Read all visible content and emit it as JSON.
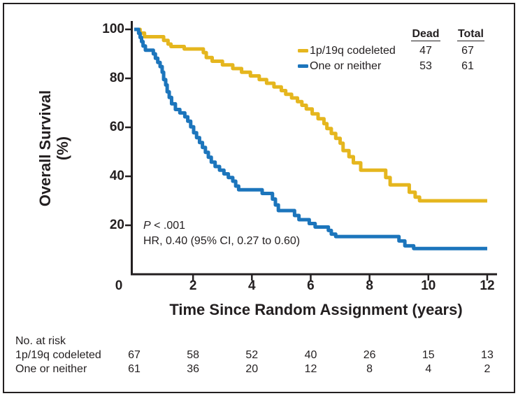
{
  "chart_data": {
    "type": "line",
    "subtype": "kaplan-meier-step",
    "xlabel": "Time Since Random Assignment (years)",
    "ylabel_line1": "Overall Survival",
    "ylabel_line2": "(%)",
    "xlim": [
      0,
      12
    ],
    "ylim": [
      0,
      100
    ],
    "xticks": [
      0,
      2,
      4,
      6,
      8,
      10,
      12
    ],
    "yticks": [
      100,
      80,
      60,
      40,
      20
    ],
    "grid": false,
    "axis_color": "#231F20",
    "legend_position": "upper-right-inside",
    "legend_headers": {
      "dead": "Dead",
      "total": "Total"
    },
    "series": [
      {
        "name": "1p/19q codeleted",
        "color": "#E5B61E",
        "dead": 47,
        "total": 67,
        "points": [
          [
            0,
            100
          ],
          [
            0.2,
            98.5
          ],
          [
            0.35,
            97
          ],
          [
            1.0,
            95.5
          ],
          [
            1.15,
            94
          ],
          [
            1.25,
            93
          ],
          [
            1.7,
            92
          ],
          [
            2.35,
            90.5
          ],
          [
            2.45,
            88.5
          ],
          [
            2.65,
            87
          ],
          [
            3.0,
            85.5
          ],
          [
            3.35,
            84
          ],
          [
            3.65,
            82.5
          ],
          [
            3.95,
            81
          ],
          [
            4.25,
            79.5
          ],
          [
            4.5,
            78
          ],
          [
            4.75,
            76.5
          ],
          [
            5.0,
            75
          ],
          [
            5.15,
            73.5
          ],
          [
            5.35,
            72
          ],
          [
            5.55,
            70.5
          ],
          [
            5.7,
            69
          ],
          [
            5.85,
            67.5
          ],
          [
            6.05,
            65.5
          ],
          [
            6.25,
            63.5
          ],
          [
            6.45,
            61.5
          ],
          [
            6.55,
            59.5
          ],
          [
            6.7,
            57.5
          ],
          [
            6.85,
            55.5
          ],
          [
            7.0,
            53.5
          ],
          [
            7.1,
            50.5
          ],
          [
            7.3,
            48
          ],
          [
            7.45,
            45.5
          ],
          [
            7.7,
            42.5
          ],
          [
            8.55,
            39.5
          ],
          [
            8.7,
            36.5
          ],
          [
            9.35,
            33.5
          ],
          [
            9.55,
            31.5
          ],
          [
            9.7,
            30
          ],
          [
            12,
            30
          ]
        ]
      },
      {
        "name": "One or neither",
        "color": "#1C75BC",
        "dead": 53,
        "total": 61,
        "points": [
          [
            0,
            100
          ],
          [
            0.15,
            98.4
          ],
          [
            0.2,
            96.7
          ],
          [
            0.25,
            95
          ],
          [
            0.3,
            93.2
          ],
          [
            0.38,
            91.5
          ],
          [
            0.65,
            90
          ],
          [
            0.72,
            88.2
          ],
          [
            0.8,
            86.5
          ],
          [
            0.88,
            84.8
          ],
          [
            0.95,
            82.5
          ],
          [
            1.0,
            79.5
          ],
          [
            1.07,
            77.3
          ],
          [
            1.12,
            74.5
          ],
          [
            1.19,
            72.2
          ],
          [
            1.27,
            69.6
          ],
          [
            1.4,
            67.3
          ],
          [
            1.55,
            65.9
          ],
          [
            1.72,
            64.3
          ],
          [
            1.82,
            62.5
          ],
          [
            1.92,
            60.2
          ],
          [
            2.02,
            57.8
          ],
          [
            2.12,
            55.8
          ],
          [
            2.22,
            53.8
          ],
          [
            2.32,
            51.8
          ],
          [
            2.42,
            49.8
          ],
          [
            2.52,
            47.8
          ],
          [
            2.62,
            45.8
          ],
          [
            2.75,
            44
          ],
          [
            2.9,
            42.5
          ],
          [
            3.05,
            41
          ],
          [
            3.2,
            39.5
          ],
          [
            3.35,
            38
          ],
          [
            3.45,
            36
          ],
          [
            3.55,
            34.5
          ],
          [
            4.35,
            33
          ],
          [
            4.7,
            30.7
          ],
          [
            4.8,
            28.3
          ],
          [
            4.9,
            26
          ],
          [
            5.45,
            24
          ],
          [
            5.6,
            22.3
          ],
          [
            5.95,
            20.7
          ],
          [
            6.15,
            19.3
          ],
          [
            6.6,
            17.9
          ],
          [
            6.7,
            16.4
          ],
          [
            6.85,
            15.4
          ],
          [
            9.0,
            13.6
          ],
          [
            9.2,
            11.6
          ],
          [
            9.5,
            10.5
          ],
          [
            12,
            10.5
          ]
        ]
      }
    ],
    "annotation": {
      "p_italic": "P",
      "p_rest": " < .001",
      "hr_text": "HR, 0.40 (95% CI, 0.27 to 0.60)"
    }
  },
  "at_risk": {
    "title": "No. at risk",
    "rows": [
      {
        "label": "1p/19q codeleted",
        "values": [
          67,
          58,
          52,
          40,
          26,
          15,
          13
        ]
      },
      {
        "label": "One or neither",
        "values": [
          61,
          36,
          20,
          12,
          8,
          4,
          2
        ]
      }
    ]
  }
}
